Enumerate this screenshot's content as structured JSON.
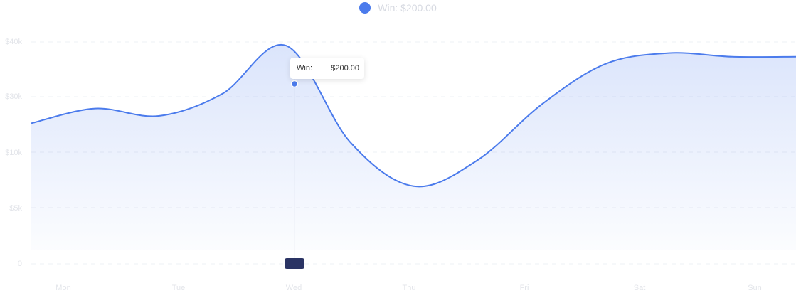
{
  "legend": {
    "label": "Win: $200.00",
    "color": "#4b7bec"
  },
  "tooltip": {
    "label": "Win:",
    "value": "$200.00"
  },
  "chart_data": {
    "type": "area",
    "title": "",
    "xlabel": "",
    "ylabel": "",
    "categories": [
      "Mon",
      "Tue",
      "Wed",
      "Thu",
      "Fri",
      "Sat",
      "Sun"
    ],
    "y_tick_labels": [
      "0",
      "$5k",
      "$10k",
      "$30k",
      "$40k"
    ],
    "series": [
      {
        "name": "Win",
        "color": "#4b7bec",
        "points": [
          [
            "Mon",
            3.8
          ],
          [
            "Mon-Tue",
            4.2
          ],
          [
            "Tue",
            4.0
          ],
          [
            "Tue-Wed",
            4.6
          ],
          [
            "Wed",
            5.9
          ],
          [
            "Wed-Thu",
            3.3
          ],
          [
            "Thu",
            2.1
          ],
          [
            "Thu-Fri",
            2.8
          ],
          [
            "Fri",
            4.3
          ],
          [
            "Fri-Sat",
            5.4
          ],
          [
            "Sat",
            5.7
          ],
          [
            "Sat-Sun",
            5.6
          ],
          [
            "Sun",
            5.6
          ]
        ]
      }
    ],
    "highlight": {
      "category": "Wed",
      "value": "$200.00"
    },
    "grid": "horizontal dashed",
    "legend_position": "top-center"
  }
}
